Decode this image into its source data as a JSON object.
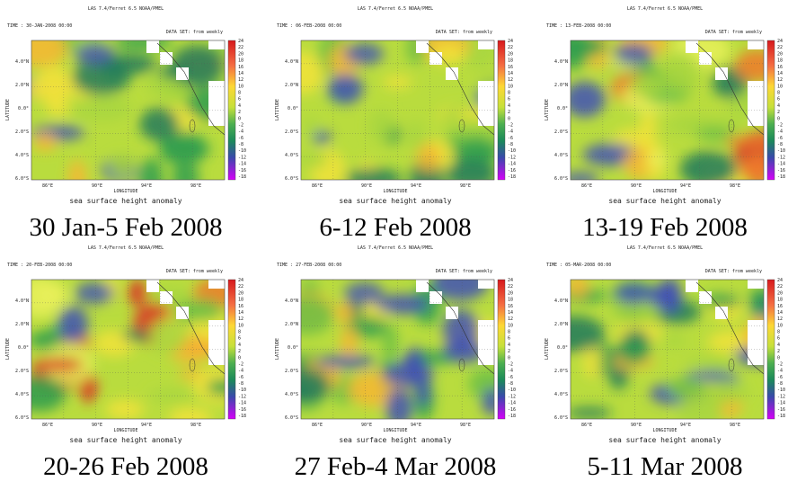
{
  "common": {
    "header": "LAS 7.4/Ferret 6.5    NOAA/PMEL",
    "dataset": "DATA SET: from weekly",
    "y_axis_label": "LATITUDE",
    "x_axis_label": "LONGITUDE",
    "lat_labels": [
      "4.0°N",
      "2.0°N",
      "0.0°",
      "2.0°S",
      "4.0°S",
      "6.0°S"
    ],
    "lon_labels": [
      "86°E",
      "90°E",
      "94°E",
      "98°E"
    ],
    "colorbar_labels": [
      24,
      22,
      20,
      18,
      16,
      14,
      12,
      10,
      8,
      6,
      4,
      2,
      0,
      -2,
      -4,
      -6,
      -8,
      -10,
      -12,
      -14,
      -16,
      -18
    ],
    "variable": "sea surface height anomaly"
  },
  "panels": [
    {
      "time": "TIME : 30-JAN-2008 00:00",
      "caption": "30 Jan-5 Feb 2008"
    },
    {
      "time": "TIME : 06-FEB-2008 00:00",
      "caption": "6-12 Feb 2008"
    },
    {
      "time": "TIME : 13-FEB-2008 00:00",
      "caption": "13-19 Feb 2008"
    },
    {
      "time": "TIME : 20-FEB-2008 00:00",
      "caption": "20-26 Feb 2008"
    },
    {
      "time": "TIME : 27-FEB-2008 00:00",
      "caption": "27 Feb-4 Mar 2008"
    },
    {
      "time": "TIME : 05-MAR-2008 00:00",
      "caption": "5-11 Mar 2008"
    }
  ]
}
